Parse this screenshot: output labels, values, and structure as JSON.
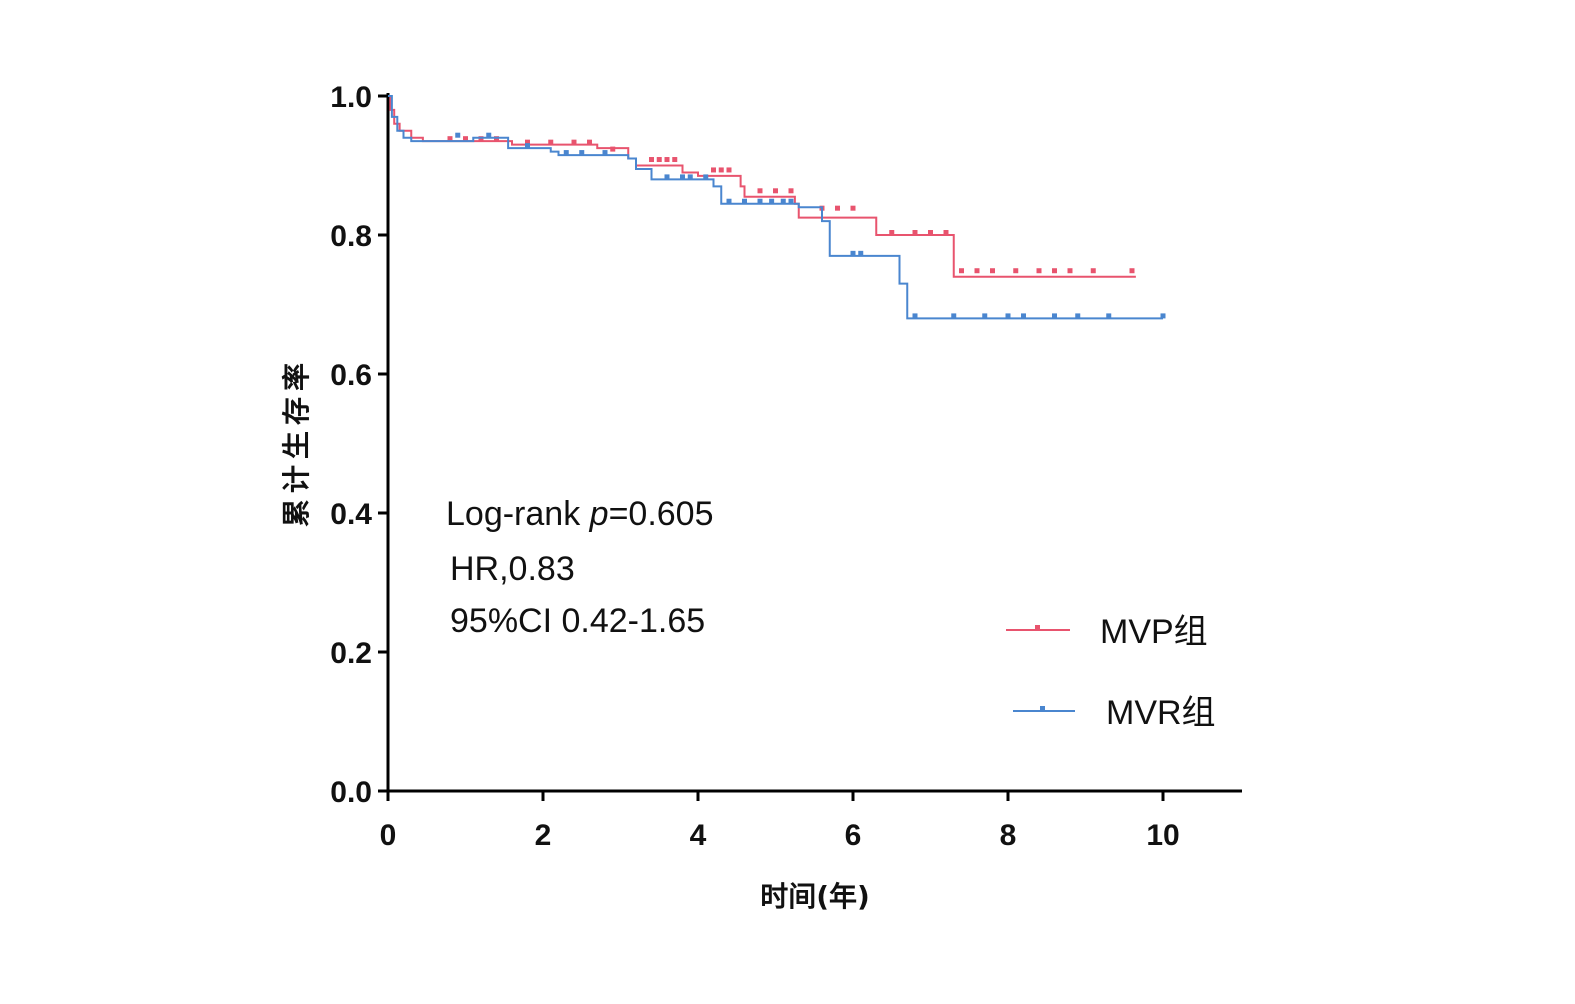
{
  "chart_data": {
    "type": "line",
    "subtype": "kaplan-meier",
    "xlabel": "时间(年)",
    "ylabel": "累计生存率",
    "xlim": [
      0,
      11
    ],
    "ylim": [
      0,
      1
    ],
    "xticks": [
      "0",
      "2",
      "4",
      "6",
      "8",
      "10"
    ],
    "yticks": [
      "0.0",
      "0.2",
      "0.4",
      "0.6",
      "0.8",
      "1.0"
    ],
    "grid": false,
    "legend_position": "bottom-right",
    "annotations": [
      "Log-rank ",
      "p",
      "=0.605",
      "HR,0.83",
      "95%CI 0.42-1.65"
    ],
    "series": [
      {
        "name": "MVP组",
        "color": "#e8546e",
        "steps": [
          [
            0,
            1.0
          ],
          [
            0.03,
            0.98
          ],
          [
            0.08,
            0.96
          ],
          [
            0.15,
            0.95
          ],
          [
            0.3,
            0.94
          ],
          [
            0.45,
            0.935
          ],
          [
            1.5,
            0.935
          ],
          [
            1.6,
            0.93
          ],
          [
            2.7,
            0.925
          ],
          [
            3.1,
            0.91
          ],
          [
            3.2,
            0.9
          ],
          [
            3.8,
            0.89
          ],
          [
            4.0,
            0.885
          ],
          [
            4.55,
            0.87
          ],
          [
            4.6,
            0.855
          ],
          [
            5.25,
            0.845
          ],
          [
            5.3,
            0.825
          ],
          [
            6.3,
            0.8
          ],
          [
            7.3,
            0.74
          ],
          [
            9.65,
            0.74
          ]
        ],
        "censored": [
          [
            0.8,
            0.935
          ],
          [
            1.0,
            0.935
          ],
          [
            1.2,
            0.935
          ],
          [
            1.4,
            0.935
          ],
          [
            1.8,
            0.93
          ],
          [
            2.1,
            0.93
          ],
          [
            2.4,
            0.93
          ],
          [
            2.6,
            0.93
          ],
          [
            2.9,
            0.92
          ],
          [
            3.4,
            0.905
          ],
          [
            3.5,
            0.905
          ],
          [
            3.6,
            0.905
          ],
          [
            3.7,
            0.905
          ],
          [
            4.2,
            0.89
          ],
          [
            4.3,
            0.89
          ],
          [
            4.4,
            0.89
          ],
          [
            4.8,
            0.86
          ],
          [
            5.0,
            0.86
          ],
          [
            5.2,
            0.86
          ],
          [
            5.6,
            0.835
          ],
          [
            5.8,
            0.835
          ],
          [
            6.0,
            0.835
          ],
          [
            6.5,
            0.8
          ],
          [
            6.8,
            0.8
          ],
          [
            7.0,
            0.8
          ],
          [
            7.2,
            0.8
          ],
          [
            7.4,
            0.745
          ],
          [
            7.6,
            0.745
          ],
          [
            7.8,
            0.745
          ],
          [
            8.1,
            0.745
          ],
          [
            8.4,
            0.745
          ],
          [
            8.6,
            0.745
          ],
          [
            8.8,
            0.745
          ],
          [
            9.1,
            0.745
          ],
          [
            9.6,
            0.745
          ]
        ]
      },
      {
        "name": "MVR组",
        "color": "#4a86cf",
        "steps": [
          [
            0,
            1.0
          ],
          [
            0.05,
            0.97
          ],
          [
            0.12,
            0.95
          ],
          [
            0.2,
            0.94
          ],
          [
            0.3,
            0.935
          ],
          [
            1.1,
            0.94
          ],
          [
            1.5,
            0.94
          ],
          [
            1.55,
            0.925
          ],
          [
            2.1,
            0.92
          ],
          [
            2.2,
            0.915
          ],
          [
            3.1,
            0.91
          ],
          [
            3.2,
            0.895
          ],
          [
            3.4,
            0.88
          ],
          [
            4.2,
            0.87
          ],
          [
            4.3,
            0.845
          ],
          [
            5.3,
            0.84
          ],
          [
            5.6,
            0.82
          ],
          [
            5.7,
            0.77
          ],
          [
            6.5,
            0.77
          ],
          [
            6.6,
            0.73
          ],
          [
            6.7,
            0.68
          ],
          [
            10.0,
            0.68
          ]
        ],
        "censored": [
          [
            0.9,
            0.94
          ],
          [
            1.3,
            0.94
          ],
          [
            1.8,
            0.925
          ],
          [
            2.3,
            0.915
          ],
          [
            2.5,
            0.915
          ],
          [
            2.8,
            0.915
          ],
          [
            3.6,
            0.88
          ],
          [
            3.8,
            0.88
          ],
          [
            3.9,
            0.88
          ],
          [
            4.1,
            0.88
          ],
          [
            4.4,
            0.845
          ],
          [
            4.6,
            0.845
          ],
          [
            4.8,
            0.845
          ],
          [
            4.95,
            0.845
          ],
          [
            5.1,
            0.845
          ],
          [
            5.2,
            0.845
          ],
          [
            6.0,
            0.77
          ],
          [
            6.1,
            0.77
          ],
          [
            6.8,
            0.68
          ],
          [
            7.3,
            0.68
          ],
          [
            7.7,
            0.68
          ],
          [
            8.0,
            0.68
          ],
          [
            8.2,
            0.68
          ],
          [
            8.6,
            0.68
          ],
          [
            8.9,
            0.68
          ],
          [
            9.3,
            0.68
          ],
          [
            10.0,
            0.68
          ]
        ]
      }
    ]
  }
}
